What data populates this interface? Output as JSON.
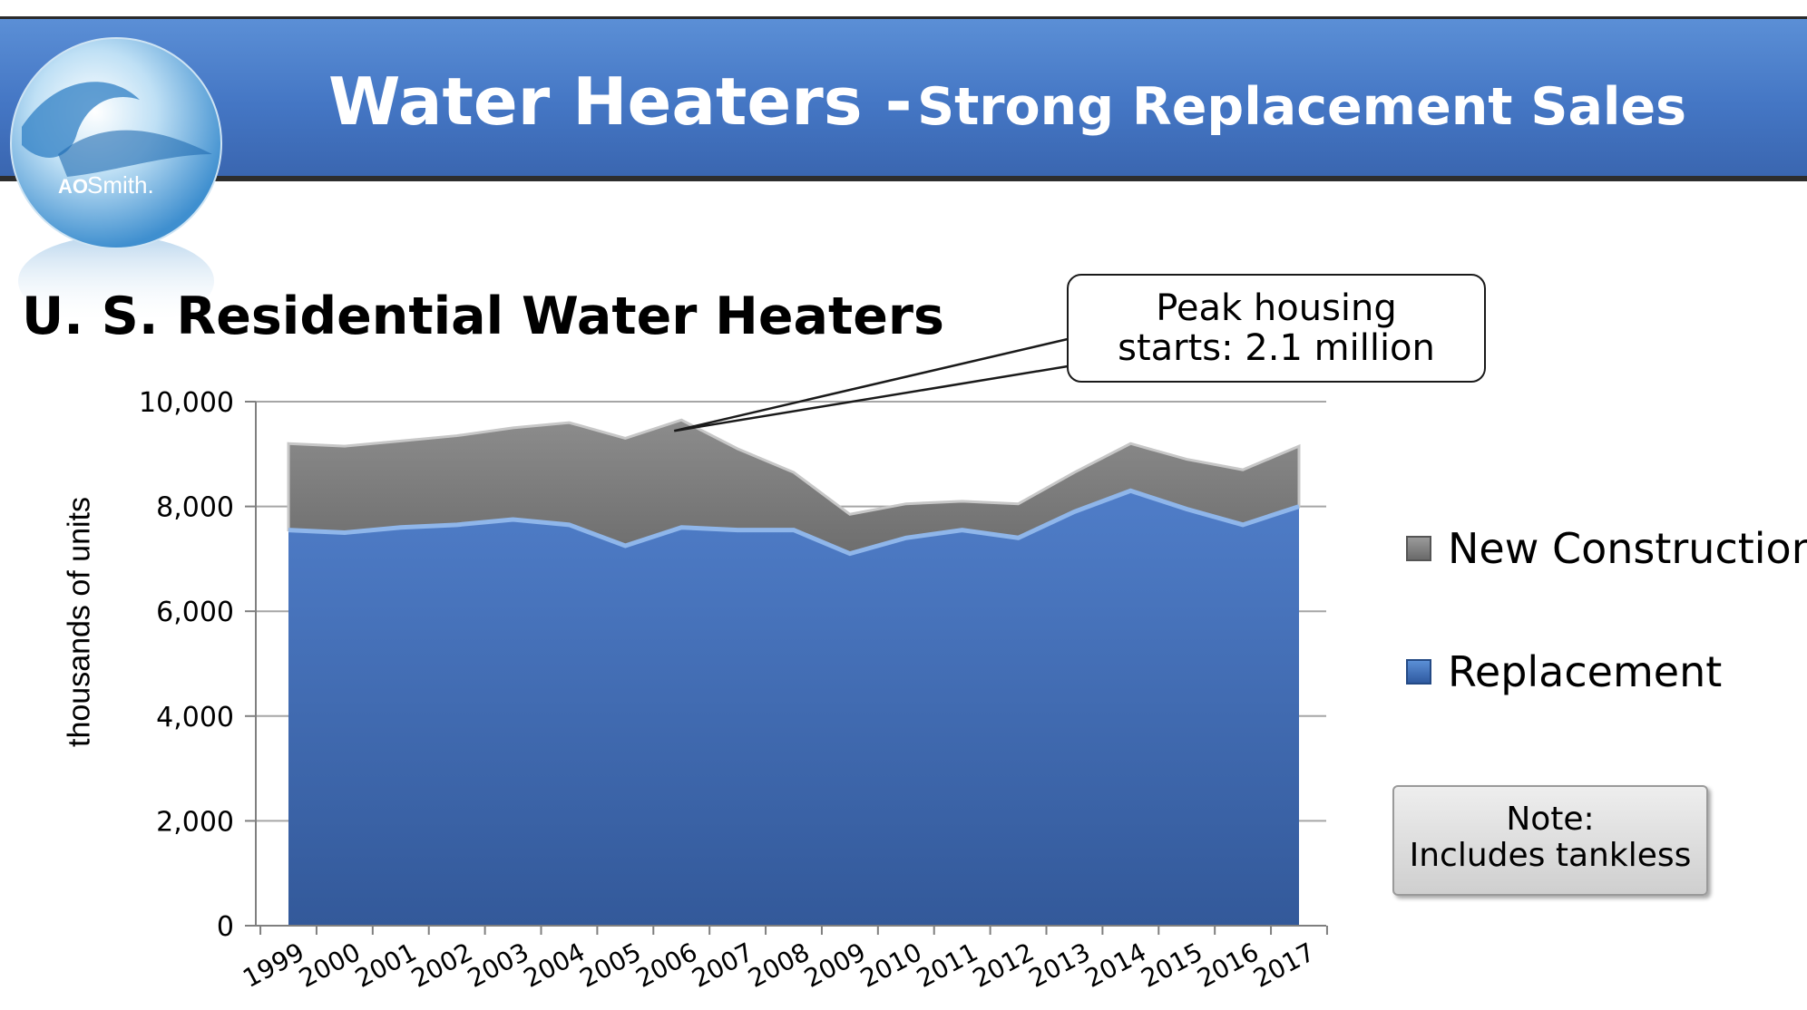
{
  "header": {
    "title_main": "Water Heaters -",
    "title_sub": "Strong Replacement Sales",
    "logo_text": "Smith.",
    "logo_mark": "AO"
  },
  "chart_title": "U. S. Residential Water Heaters",
  "callout": {
    "line1": "Peak housing",
    "line2": "starts: 2.1 million"
  },
  "note": {
    "line1": "Note:",
    "line2": "Includes tankless"
  },
  "colors": {
    "header": "#4a7ccb",
    "replacement": "#4472c4",
    "new_construction": "#7f7f7f"
  },
  "chart_data": {
    "type": "area",
    "stacked": true,
    "ylabel": "thousands of units",
    "ylim": [
      0,
      10000
    ],
    "yticks": [
      "0",
      "2,000",
      "4,000",
      "6,000",
      "8,000",
      "10,000"
    ],
    "ytick_values": [
      0,
      2000,
      4000,
      6000,
      8000,
      10000
    ],
    "x": [
      "1999",
      "2000",
      "2001",
      "2002",
      "2003",
      "2004",
      "2005",
      "2006",
      "2007",
      "2008",
      "2009",
      "2010",
      "2011",
      "2012",
      "2013",
      "2014",
      "2015",
      "2016",
      "2017"
    ],
    "series": [
      {
        "name": "Replacement",
        "color": "#4472c4",
        "values": [
          7550,
          7500,
          7600,
          7650,
          7750,
          7650,
          7250,
          7600,
          7550,
          7550,
          7100,
          7400,
          7550,
          7400,
          7900,
          8300,
          7950,
          7650,
          8000
        ]
      },
      {
        "name": "New Construction",
        "color": "#7f7f7f",
        "values": [
          1650,
          1650,
          1650,
          1700,
          1750,
          1950,
          2050,
          2050,
          1550,
          1100,
          750,
          650,
          550,
          650,
          750,
          900,
          950,
          1050,
          1150
        ]
      }
    ],
    "legend": [
      {
        "name": "New Construction",
        "color": "#7f7f7f"
      },
      {
        "name": "Replacement",
        "color": "#4472c4"
      }
    ],
    "legend_position": "right",
    "grid": "horizontal",
    "annotation": {
      "text": "Peak housing starts: 2.1 million",
      "x": "2006"
    }
  }
}
